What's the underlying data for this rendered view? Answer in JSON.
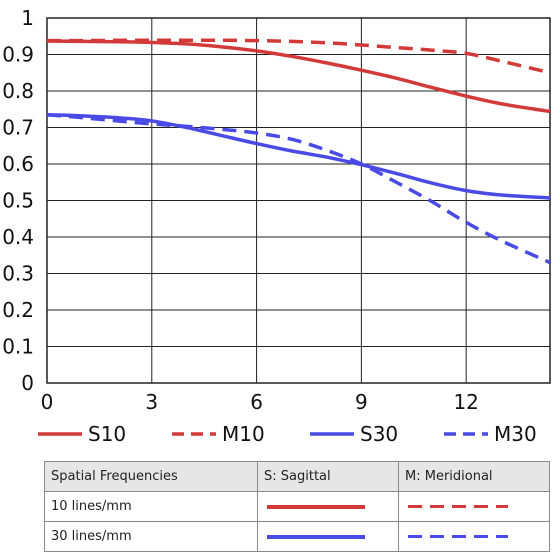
{
  "chart_data": {
    "type": "line",
    "title": "",
    "xlabel": "",
    "ylabel": "",
    "xlim": [
      0,
      14.4
    ],
    "ylim": [
      0,
      1
    ],
    "x_ticks": [
      "0",
      "3",
      "6",
      "9",
      "12"
    ],
    "y_ticks": [
      "0",
      "0.1",
      "0.2",
      "0.3",
      "0.4",
      "0.5",
      "0.6",
      "0.7",
      "0.8",
      "0.9",
      "1"
    ],
    "grid": true,
    "legend_position": "bottom",
    "series": [
      {
        "name": "S10",
        "color": "#d23a3a",
        "dash": false,
        "x": [
          0,
          1,
          2,
          3,
          4,
          5,
          6,
          7,
          8,
          9,
          10,
          11,
          12,
          13,
          14.4
        ],
        "y": [
          0.937,
          0.936,
          0.935,
          0.933,
          0.929,
          0.921,
          0.91,
          0.895,
          0.877,
          0.857,
          0.835,
          0.81,
          0.786,
          0.765,
          0.744
        ]
      },
      {
        "name": "M10",
        "color": "#d23a3a",
        "dash": true,
        "x": [
          0,
          1,
          2,
          3,
          4,
          5,
          6,
          7,
          8,
          9,
          10,
          11,
          12,
          13,
          14.4
        ],
        "y": [
          0.938,
          0.938,
          0.939,
          0.939,
          0.939,
          0.939,
          0.938,
          0.936,
          0.932,
          0.926,
          0.919,
          0.912,
          0.903,
          0.882,
          0.85
        ]
      },
      {
        "name": "S30",
        "color": "#4a4ae6",
        "dash": false,
        "x": [
          0,
          1,
          2,
          3,
          4,
          5,
          6,
          7,
          8,
          9,
          10,
          11,
          12,
          13,
          14.4
        ],
        "y": [
          0.735,
          0.732,
          0.727,
          0.718,
          0.7,
          0.678,
          0.656,
          0.636,
          0.619,
          0.598,
          0.574,
          0.548,
          0.527,
          0.515,
          0.507
        ]
      },
      {
        "name": "M30",
        "color": "#4a4ae6",
        "dash": true,
        "x": [
          0,
          1,
          2,
          3,
          4,
          5,
          6,
          7,
          8,
          9,
          10,
          11,
          12,
          13,
          14.4
        ],
        "y": [
          0.735,
          0.727,
          0.718,
          0.71,
          0.703,
          0.695,
          0.685,
          0.668,
          0.638,
          0.6,
          0.55,
          0.498,
          0.44,
          0.39,
          0.33
        ]
      }
    ]
  },
  "table": {
    "headers": [
      "Spatial Frequencies",
      "S: Sagittal",
      "M: Meridional"
    ],
    "rows": [
      {
        "label": "10 lines/mm",
        "color": "#d23a3a"
      },
      {
        "label": "30 lines/mm",
        "color": "#4a4ae6"
      }
    ]
  }
}
